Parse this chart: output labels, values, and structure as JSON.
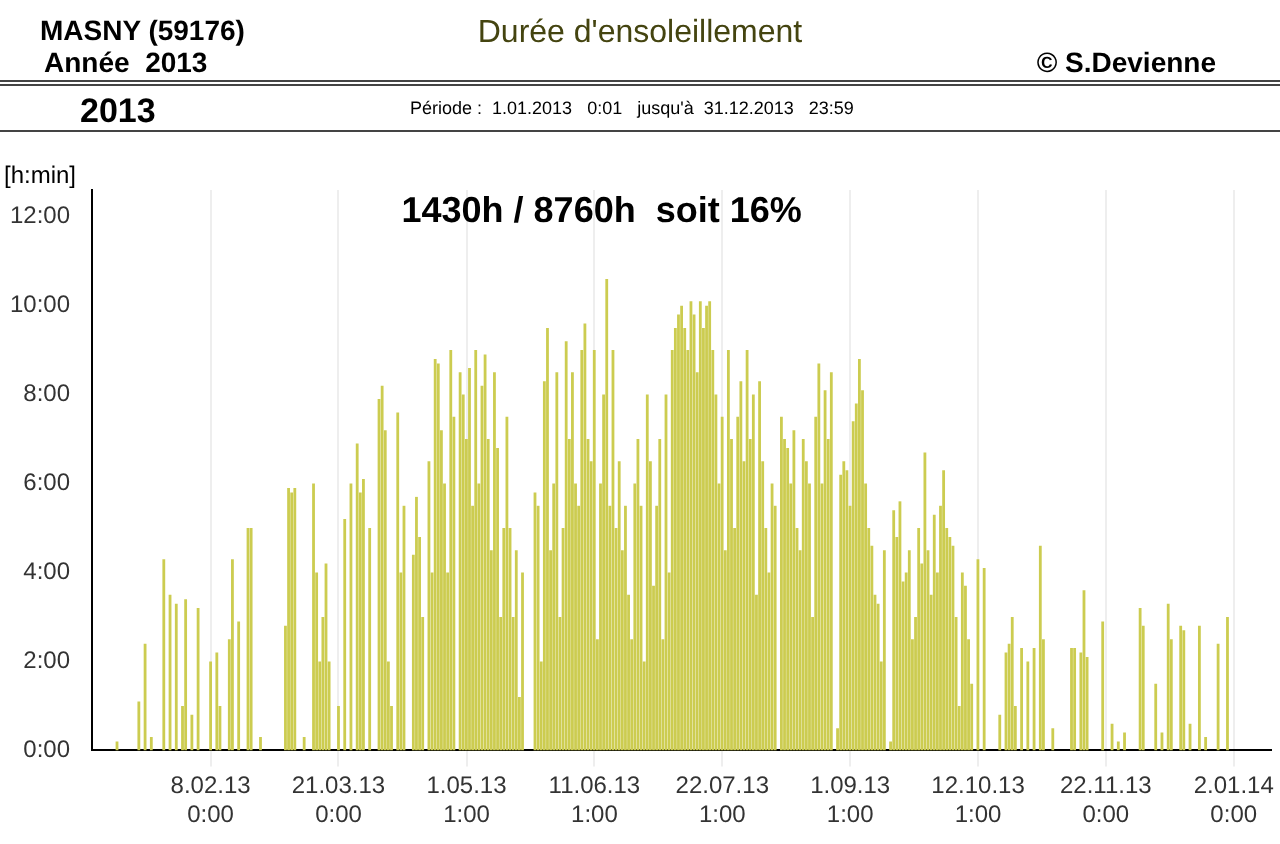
{
  "chart_data": {
    "type": "bar",
    "title": "Durée d'ensoleillement",
    "ylabel": "[h:min]",
    "annotations": [
      "MASNY (59176)",
      "Année  2013",
      "© S.Devienne",
      "2013",
      "Période :  1.01.2013   0:01   jusqu'à  31.12.2013   23:59",
      "1430h / 8760h  soit 16%"
    ],
    "color": "#cccc50",
    "grid": "x",
    "legend": false,
    "xlim": [
      "2013-01-01",
      "2014-01-14"
    ],
    "xticks": [
      {
        "value": "2013-02-08T00:00",
        "label": "8.02.13 0:00"
      },
      {
        "value": "2013-03-21T00:00",
        "label": "21.03.13 0:00"
      },
      {
        "value": "2013-05-01T01:00",
        "label": "1.05.13 1:00"
      },
      {
        "value": "2013-06-11T01:00",
        "label": "11.06.13 1:00"
      },
      {
        "value": "2013-07-22T01:00",
        "label": "22.07.13 1:00"
      },
      {
        "value": "2013-09-01T01:00",
        "label": "1.09.13 1:00"
      },
      {
        "value": "2013-10-12T01:00",
        "label": "12.10.13 1:00"
      },
      {
        "value": "2013-11-22T00:00",
        "label": "22.11.13 0:00"
      },
      {
        "value": "2014-01-02T00:00",
        "label": "2.01.14 0:00"
      }
    ],
    "ylim": [
      0,
      12.6
    ],
    "yticks": [
      {
        "value": 0,
        "label": "0:00"
      },
      {
        "value": 2,
        "label": "2:00"
      },
      {
        "value": 4,
        "label": "4:00"
      },
      {
        "value": 6,
        "label": "6:00"
      },
      {
        "value": 8,
        "label": "8:00"
      },
      {
        "value": 10,
        "label": "10:00"
      },
      {
        "value": 12,
        "label": "12:00"
      }
    ],
    "x": [
      "2013-01-01",
      "2013-01-02",
      "2013-01-03",
      "2013-01-04",
      "2013-01-05",
      "2013-01-06",
      "2013-01-07",
      "2013-01-08",
      "2013-01-09",
      "2013-01-10",
      "2013-01-11",
      "2013-01-12",
      "2013-01-13",
      "2013-01-14",
      "2013-01-15",
      "2013-01-16",
      "2013-01-17",
      "2013-01-18",
      "2013-01-19",
      "2013-01-20",
      "2013-01-21",
      "2013-01-22",
      "2013-01-23",
      "2013-01-24",
      "2013-01-25",
      "2013-01-26",
      "2013-01-27",
      "2013-01-28",
      "2013-01-29",
      "2013-01-30",
      "2013-01-31",
      "2013-02-01",
      "2013-02-02",
      "2013-02-03",
      "2013-02-04",
      "2013-02-05",
      "2013-02-06",
      "2013-02-07",
      "2013-02-08",
      "2013-02-09",
      "2013-02-10",
      "2013-02-11",
      "2013-02-12",
      "2013-02-13",
      "2013-02-14",
      "2013-02-15",
      "2013-02-16",
      "2013-02-17",
      "2013-02-18",
      "2013-02-19",
      "2013-02-20",
      "2013-02-21",
      "2013-02-22",
      "2013-02-23",
      "2013-02-24",
      "2013-02-25",
      "2013-02-26",
      "2013-02-27",
      "2013-02-28",
      "2013-03-01",
      "2013-03-02",
      "2013-03-03",
      "2013-03-04",
      "2013-03-05",
      "2013-03-06",
      "2013-03-07",
      "2013-03-08",
      "2013-03-09",
      "2013-03-10",
      "2013-03-11",
      "2013-03-12",
      "2013-03-13",
      "2013-03-14",
      "2013-03-15",
      "2013-03-16",
      "2013-03-17",
      "2013-03-18",
      "2013-03-19",
      "2013-03-20",
      "2013-03-21",
      "2013-03-22",
      "2013-03-23",
      "2013-03-24",
      "2013-03-25",
      "2013-03-26",
      "2013-03-27",
      "2013-03-28",
      "2013-03-29",
      "2013-03-30",
      "2013-03-31",
      "2013-04-01",
      "2013-04-02",
      "2013-04-03",
      "2013-04-04",
      "2013-04-05",
      "2013-04-06",
      "2013-04-07",
      "2013-04-08",
      "2013-04-09",
      "2013-04-10",
      "2013-04-11",
      "2013-04-12",
      "2013-04-13",
      "2013-04-14",
      "2013-04-15",
      "2013-04-16",
      "2013-04-17",
      "2013-04-18",
      "2013-04-19",
      "2013-04-20",
      "2013-04-21",
      "2013-04-22",
      "2013-04-23",
      "2013-04-24",
      "2013-04-25",
      "2013-04-26",
      "2013-04-27",
      "2013-04-28",
      "2013-04-29",
      "2013-04-30",
      "2013-05-01",
      "2013-05-02",
      "2013-05-03",
      "2013-05-04",
      "2013-05-05",
      "2013-05-06",
      "2013-05-07",
      "2013-05-08",
      "2013-05-09",
      "2013-05-10",
      "2013-05-11",
      "2013-05-12",
      "2013-05-13",
      "2013-05-14",
      "2013-05-15",
      "2013-05-16",
      "2013-05-17",
      "2013-05-18",
      "2013-05-19",
      "2013-05-20",
      "2013-05-21",
      "2013-05-22",
      "2013-05-23",
      "2013-05-24",
      "2013-05-25",
      "2013-05-26",
      "2013-05-27",
      "2013-05-28",
      "2013-05-29",
      "2013-05-30",
      "2013-05-31",
      "2013-06-01",
      "2013-06-02",
      "2013-06-03",
      "2013-06-04",
      "2013-06-05",
      "2013-06-06",
      "2013-06-07",
      "2013-06-08",
      "2013-06-09",
      "2013-06-10",
      "2013-06-11",
      "2013-06-12",
      "2013-06-13",
      "2013-06-14",
      "2013-06-15",
      "2013-06-16",
      "2013-06-17",
      "2013-06-18",
      "2013-06-19",
      "2013-06-20",
      "2013-06-21",
      "2013-06-22",
      "2013-06-23",
      "2013-06-24",
      "2013-06-25",
      "2013-06-26",
      "2013-06-27",
      "2013-06-28",
      "2013-06-29",
      "2013-06-30",
      "2013-07-01",
      "2013-07-02",
      "2013-07-03",
      "2013-07-04",
      "2013-07-05",
      "2013-07-06",
      "2013-07-07",
      "2013-07-08",
      "2013-07-09",
      "2013-07-10",
      "2013-07-11",
      "2013-07-12",
      "2013-07-13",
      "2013-07-14",
      "2013-07-15",
      "2013-07-16",
      "2013-07-17",
      "2013-07-18",
      "2013-07-19",
      "2013-07-20",
      "2013-07-21",
      "2013-07-22",
      "2013-07-23",
      "2013-07-24",
      "2013-07-25",
      "2013-07-26",
      "2013-07-27",
      "2013-07-28",
      "2013-07-29",
      "2013-07-30",
      "2013-07-31",
      "2013-08-01",
      "2013-08-02",
      "2013-08-03",
      "2013-08-04",
      "2013-08-05",
      "2013-08-06",
      "2013-08-07",
      "2013-08-08",
      "2013-08-09",
      "2013-08-10",
      "2013-08-11",
      "2013-08-12",
      "2013-08-13",
      "2013-08-14",
      "2013-08-15",
      "2013-08-16",
      "2013-08-17",
      "2013-08-18",
      "2013-08-19",
      "2013-08-20",
      "2013-08-21",
      "2013-08-22",
      "2013-08-23",
      "2013-08-24",
      "2013-08-25",
      "2013-08-26",
      "2013-08-27",
      "2013-08-28",
      "2013-08-29",
      "2013-08-30",
      "2013-08-31",
      "2013-09-01",
      "2013-09-02",
      "2013-09-03",
      "2013-09-04",
      "2013-09-05",
      "2013-09-06",
      "2013-09-07",
      "2013-09-08",
      "2013-09-09",
      "2013-09-10",
      "2013-09-11",
      "2013-09-12",
      "2013-09-13",
      "2013-09-14",
      "2013-09-15",
      "2013-09-16",
      "2013-09-17",
      "2013-09-18",
      "2013-09-19",
      "2013-09-20",
      "2013-09-21",
      "2013-09-22",
      "2013-09-23",
      "2013-09-24",
      "2013-09-25",
      "2013-09-26",
      "2013-09-27",
      "2013-09-28",
      "2013-09-29",
      "2013-09-30",
      "2013-10-01",
      "2013-10-02",
      "2013-10-03",
      "2013-10-04",
      "2013-10-05",
      "2013-10-06",
      "2013-10-07",
      "2013-10-08",
      "2013-10-09",
      "2013-10-10",
      "2013-10-11",
      "2013-10-12",
      "2013-10-13",
      "2013-10-14",
      "2013-10-15",
      "2013-10-16",
      "2013-10-17",
      "2013-10-18",
      "2013-10-19",
      "2013-10-20",
      "2013-10-21",
      "2013-10-22",
      "2013-10-23",
      "2013-10-24",
      "2013-10-25",
      "2013-10-26",
      "2013-10-27",
      "2013-10-28",
      "2013-10-29",
      "2013-10-30",
      "2013-10-31",
      "2013-11-01",
      "2013-11-02",
      "2013-11-03",
      "2013-11-04",
      "2013-11-05",
      "2013-11-06",
      "2013-11-07",
      "2013-11-08",
      "2013-11-09",
      "2013-11-10",
      "2013-11-11",
      "2013-11-12",
      "2013-11-13",
      "2013-11-14",
      "2013-11-15",
      "2013-11-16",
      "2013-11-17",
      "2013-11-18",
      "2013-11-19",
      "2013-11-20",
      "2013-11-21",
      "2013-11-22",
      "2013-11-23",
      "2013-11-24",
      "2013-11-25",
      "2013-11-26",
      "2013-11-27",
      "2013-11-28",
      "2013-11-29",
      "2013-11-30",
      "2013-12-01",
      "2013-12-02",
      "2013-12-03",
      "2013-12-04",
      "2013-12-05",
      "2013-12-06",
      "2013-12-07",
      "2013-12-08",
      "2013-12-09",
      "2013-12-10",
      "2013-12-11",
      "2013-12-12",
      "2013-12-13",
      "2013-12-14",
      "2013-12-15",
      "2013-12-16",
      "2013-12-17",
      "2013-12-18",
      "2013-12-19",
      "2013-12-20",
      "2013-12-21",
      "2013-12-22",
      "2013-12-23",
      "2013-12-24",
      "2013-12-25",
      "2013-12-26",
      "2013-12-27",
      "2013-12-28",
      "2013-12-29",
      "2013-12-30",
      "2013-12-31"
    ],
    "values": [
      0,
      0,
      0,
      0,
      0,
      0,
      0,
      0,
      0.2,
      0,
      0,
      0,
      0,
      0,
      0,
      1.1,
      0,
      2.4,
      0,
      0.3,
      0,
      0,
      0,
      4.3,
      0,
      3.5,
      0,
      3.3,
      0,
      1.0,
      3.4,
      0,
      0.8,
      0,
      3.2,
      0,
      0,
      0,
      2.0,
      0,
      2.2,
      1.0,
      0,
      0,
      2.5,
      4.3,
      0,
      2.9,
      0,
      0,
      5.0,
      5.0,
      0,
      0,
      0.3,
      0,
      0,
      0,
      0,
      0,
      0,
      0,
      2.8,
      5.9,
      5.8,
      5.9,
      0,
      0,
      0.3,
      0,
      0,
      6.0,
      4.0,
      2.0,
      3.0,
      4.2,
      2.0,
      0,
      0,
      1.0,
      0,
      5.2,
      0,
      6.0,
      0,
      6.9,
      5.8,
      6.1,
      0,
      5.0,
      0,
      0,
      7.9,
      8.2,
      7.2,
      2.0,
      1.0,
      0,
      7.6,
      4.0,
      5.5,
      0,
      0,
      4.4,
      5.7,
      4.8,
      3.0,
      0,
      6.5,
      4.0,
      8.8,
      8.7,
      7.2,
      6.0,
      4.0,
      9.0,
      7.5,
      0,
      8.5,
      8.0,
      7.0,
      8.6,
      5.5,
      9.0,
      6.0,
      8.2,
      8.9,
      7.0,
      4.5,
      8.5,
      6.8,
      3.0,
      5.0,
      7.5,
      5.0,
      3.0,
      4.5,
      1.2,
      4.0,
      0,
      0,
      0,
      5.8,
      5.5,
      2.0,
      8.3,
      9.5,
      4.5,
      6.0,
      8.5,
      3.0,
      5.0,
      9.2,
      7.0,
      8.5,
      6.0,
      5.5,
      9.0,
      9.6,
      7.0,
      6.5,
      9.0,
      2.5,
      6.0,
      8.0,
      10.6,
      5.5,
      9.0,
      5.0,
      6.5,
      4.5,
      5.5,
      3.5,
      2.5,
      6.0,
      7.0,
      5.5,
      2.0,
      8.0,
      6.5,
      3.7,
      5.5,
      7.0,
      2.5,
      8.0,
      4.0,
      9.0,
      9.5,
      9.8,
      10.0,
      9.5,
      9.0,
      10.1,
      9.8,
      8.5,
      10.1,
      9.5,
      10.0,
      10.1,
      9.0,
      8.0,
      6.0,
      7.5,
      4.5,
      9.0,
      7.0,
      5.0,
      7.5,
      8.3,
      6.5,
      9.0,
      7.0,
      8.0,
      3.5,
      8.3,
      6.5,
      5.0,
      4.0,
      6.0,
      5.5,
      0,
      7.5,
      7.0,
      6.8,
      6.0,
      7.2,
      5.0,
      4.5,
      7.0,
      6.5,
      6.0,
      3.0,
      7.5,
      8.7,
      6.0,
      8.1,
      7.0,
      8.5,
      0,
      0.5,
      6.2,
      6.5,
      6.3,
      5.5,
      7.4,
      7.8,
      8.8,
      8.1,
      6.0,
      5.0,
      4.6,
      3.5,
      3.3,
      2.0,
      4.5,
      0,
      0.2,
      5.4,
      4.8,
      5.6,
      3.8,
      4.0,
      4.5,
      2.5,
      3.0,
      5.0,
      4.2,
      6.7,
      4.5,
      3.5,
      5.3,
      4.0,
      5.5,
      6.3,
      5.0,
      4.8,
      4.6,
      3.0,
      1.0,
      4.0,
      3.7,
      2.5,
      1.5,
      0,
      4.3,
      0,
      4.1,
      0,
      0,
      0,
      0,
      0.8,
      0,
      2.2,
      2.4,
      3.0,
      1.0,
      0,
      2.3,
      0,
      2.0,
      0,
      2.3,
      0,
      4.6,
      2.5,
      0,
      0,
      0.5,
      0,
      0,
      0,
      0,
      0,
      2.3,
      2.3,
      0,
      2.2,
      3.6,
      2.1,
      0,
      0,
      0,
      0,
      2.9,
      0,
      0,
      0.6,
      0,
      0.2,
      0,
      0.4,
      0,
      0,
      0,
      0,
      3.2,
      2.8,
      0,
      0,
      0,
      1.5,
      0,
      0.4,
      0,
      3.3,
      2.5,
      0,
      0,
      2.8,
      2.7,
      0,
      0.6,
      0,
      0,
      2.8,
      0,
      0.3,
      0,
      0,
      0,
      2.4,
      0,
      0,
      3.0
    ]
  }
}
